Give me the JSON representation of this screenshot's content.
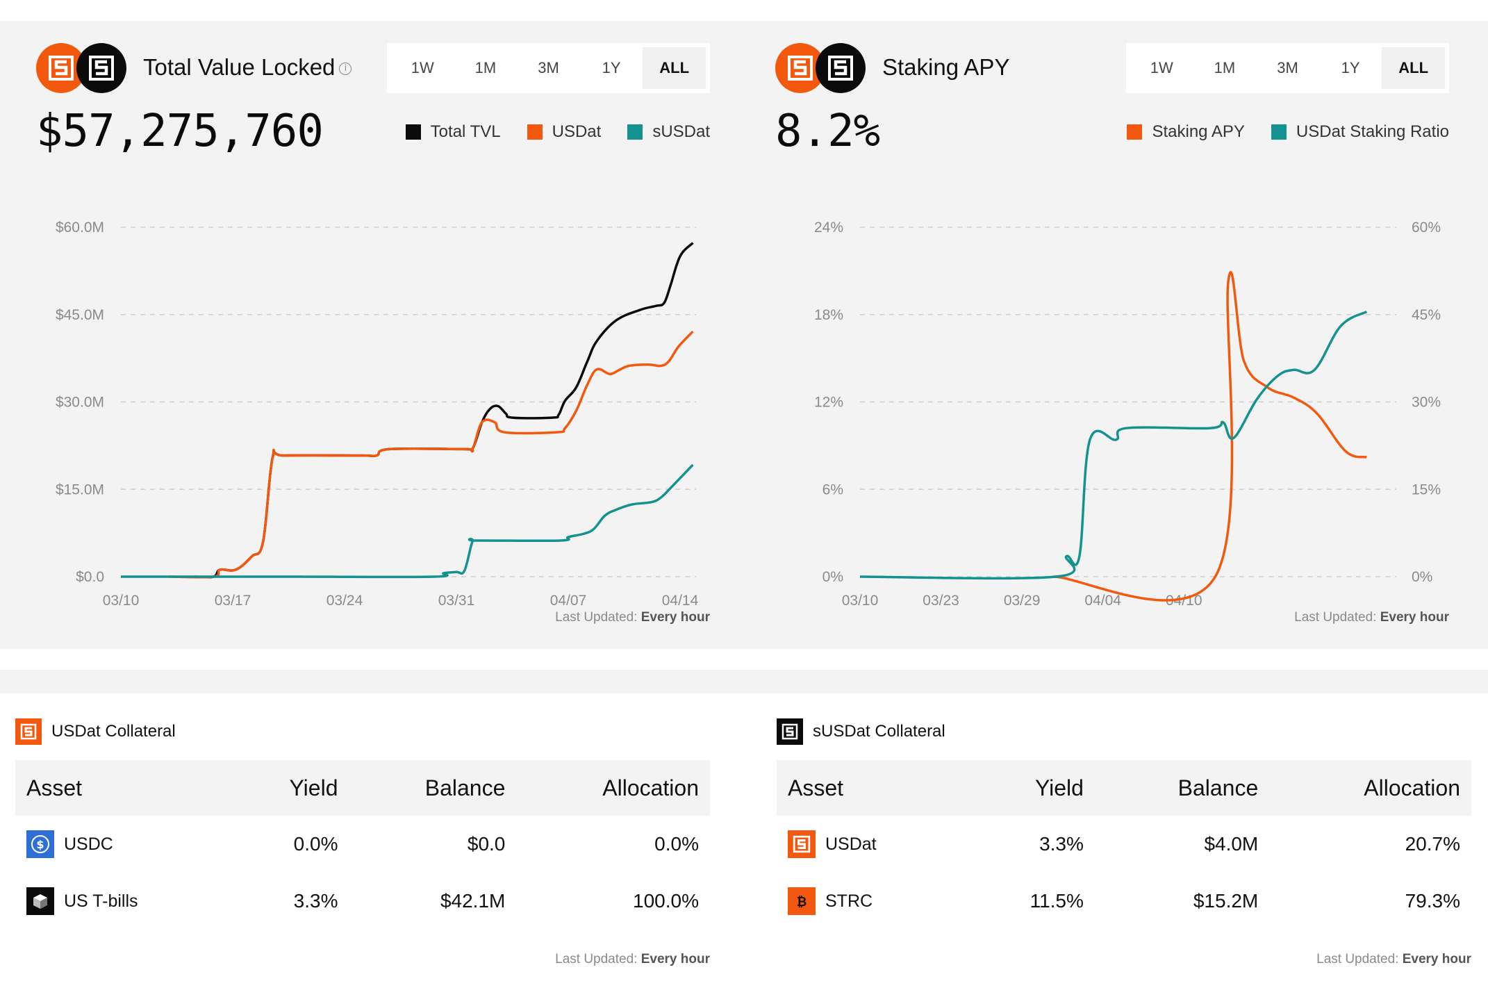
{
  "tvl_panel": {
    "title": "Total Value Locked",
    "info_icon": "info-icon",
    "big_value": "$57,275,760",
    "ranges": [
      "1W",
      "1M",
      "3M",
      "1Y",
      "ALL"
    ],
    "active_range": "ALL",
    "updated_label": "Last Updated:",
    "updated_value": "Every hour"
  },
  "apy_panel": {
    "title": "Staking APY",
    "big_value": "8.2%",
    "ranges": [
      "1W",
      "1M",
      "3M",
      "1Y",
      "ALL"
    ],
    "active_range": "ALL",
    "updated_label": "Last Updated:",
    "updated_value": "Every hour"
  },
  "colors": {
    "orange": "#f2590f",
    "black": "#0b0b0b",
    "teal": "#14928f",
    "panel_bg": "#f3f3f3"
  },
  "chart_data": [
    {
      "type": "line",
      "title": "Total Value Locked",
      "x_ticks": [
        "03/10",
        "03/17",
        "03/24",
        "03/31",
        "04/07",
        "04/14"
      ],
      "y_ticks": [
        "$60.0M",
        "$45.0M",
        "$30.0M",
        "$15.0M",
        "$0.0"
      ],
      "ylim": [
        0,
        60
      ],
      "x_range_days": [
        0,
        36
      ],
      "series": [
        {
          "name": "Total TVL",
          "color": "#0b0b0b",
          "points": [
            [
              4.6,
              0
            ],
            [
              5.8,
              0
            ],
            [
              6.2,
              1.2
            ],
            [
              7.2,
              1.2
            ],
            [
              8.2,
              3.5
            ],
            [
              8.9,
              6
            ],
            [
              9.5,
              20.5
            ],
            [
              10.2,
              20.8
            ],
            [
              15,
              20.8
            ],
            [
              16,
              20.8
            ],
            [
              16.8,
              21.9
            ],
            [
              21.5,
              21.9
            ],
            [
              22,
              21.9
            ],
            [
              22.6,
              26.5
            ],
            [
              23.1,
              28.8
            ],
            [
              23.6,
              29.3
            ],
            [
              24.1,
              28
            ],
            [
              24.5,
              27.3
            ],
            [
              27,
              27.3
            ],
            [
              27.4,
              27.8
            ],
            [
              27.8,
              30.2
            ],
            [
              28.5,
              32.5
            ],
            [
              29.2,
              37
            ],
            [
              29.8,
              40.5
            ],
            [
              31,
              44
            ],
            [
              32.5,
              45.8
            ],
            [
              33.5,
              46.5
            ],
            [
              34,
              47
            ],
            [
              34.4,
              50
            ],
            [
              35,
              55
            ],
            [
              35.8,
              57.3
            ]
          ]
        },
        {
          "name": "USDat",
          "color": "#f2590f",
          "points": [
            [
              3,
              0
            ],
            [
              5.8,
              0
            ],
            [
              6.2,
              1.2
            ],
            [
              7.2,
              1.2
            ],
            [
              8.2,
              3.5
            ],
            [
              8.9,
              6
            ],
            [
              9.5,
              20.5
            ],
            [
              10.2,
              20.8
            ],
            [
              15,
              20.8
            ],
            [
              16,
              20.8
            ],
            [
              16.8,
              21.9
            ],
            [
              21.5,
              21.9
            ],
            [
              22,
              21.9
            ],
            [
              22.6,
              26.5
            ],
            [
              23.4,
              26.5
            ],
            [
              24,
              24.8
            ],
            [
              27.3,
              24.8
            ],
            [
              27.8,
              25.5
            ],
            [
              28.5,
              28.5
            ],
            [
              29.2,
              33
            ],
            [
              29.8,
              35.6
            ],
            [
              30.6,
              34.8
            ],
            [
              31.2,
              35.5
            ],
            [
              31.8,
              36.2
            ],
            [
              33,
              36.4
            ],
            [
              33.8,
              36.2
            ],
            [
              34.3,
              37
            ],
            [
              34.9,
              39.5
            ],
            [
              35.8,
              42.1
            ]
          ]
        },
        {
          "name": "sUSDat",
          "color": "#14928f",
          "points": [
            [
              0,
              0
            ],
            [
              3,
              0
            ],
            [
              3.5,
              0
            ],
            [
              11,
              0
            ],
            [
              11.2,
              0
            ],
            [
              19.6,
              0
            ],
            [
              20.2,
              0.6
            ],
            [
              21,
              0.8
            ],
            [
              21.5,
              1
            ],
            [
              22,
              6
            ],
            [
              22.3,
              6.2
            ],
            [
              27.5,
              6.2
            ],
            [
              28,
              6.8
            ],
            [
              29,
              7.4
            ],
            [
              29.6,
              8.2
            ],
            [
              30.3,
              10.5
            ],
            [
              31,
              11.5
            ],
            [
              32,
              12.4
            ],
            [
              33.2,
              12.8
            ],
            [
              33.8,
              13.6
            ],
            [
              34.5,
              15.5
            ],
            [
              35.8,
              19.2
            ]
          ]
        }
      ]
    },
    {
      "type": "line",
      "title": "Staking APY",
      "x_ticks": [
        "03/10",
        "03/23",
        "03/29",
        "04/04",
        "04/10"
      ],
      "y_left_ticks": [
        "24%",
        "18%",
        "12%",
        "6%",
        "0%"
      ],
      "y_right_ticks": [
        "60%",
        "45%",
        "30%",
        "15%",
        "0%"
      ],
      "ylim_left": [
        0,
        24
      ],
      "ylim_right": [
        0,
        60
      ],
      "series": [
        {
          "name": "Staking APY",
          "color": "#f2590f",
          "axis": "left",
          "points": [
            [
              0.37,
              0
            ],
            [
              0.68,
              0
            ],
            [
              0.705,
              20.3
            ],
            [
              0.735,
              14.8
            ],
            [
              0.78,
              13
            ],
            [
              0.83,
              12.3
            ],
            [
              0.875,
              11.2
            ],
            [
              0.93,
              8.6
            ],
            [
              0.97,
              8.2
            ]
          ]
        },
        {
          "name": "USDat Staking Ratio",
          "color": "#14928f",
          "axis": "right",
          "points": [
            [
              0,
              0
            ],
            [
              0.375,
              0
            ],
            [
              0.395,
              3.5
            ],
            [
              0.42,
              3.5
            ],
            [
              0.44,
              23.5
            ],
            [
              0.49,
              23.5
            ],
            [
              0.51,
              25.5
            ],
            [
              0.67,
              25.5
            ],
            [
              0.695,
              26.5
            ],
            [
              0.715,
              23.8
            ],
            [
              0.76,
              30.5
            ],
            [
              0.8,
              34.5
            ],
            [
              0.83,
              35.5
            ],
            [
              0.87,
              35.5
            ],
            [
              0.92,
              43
            ],
            [
              0.97,
              45.5
            ]
          ]
        }
      ]
    }
  ],
  "usdat_collateral": {
    "title": "USDat Collateral",
    "headers": [
      "Asset",
      "Yield",
      "Balance",
      "Allocation"
    ],
    "rows": [
      {
        "asset": "USDC",
        "icon": "usdc-icon",
        "yield": "0.0%",
        "balance": "$0.0",
        "allocation": "0.0%"
      },
      {
        "asset": "US T-bills",
        "icon": "tbills-icon",
        "yield": "3.3%",
        "balance": "$42.1M",
        "allocation": "100.0%"
      }
    ],
    "updated_label": "Last Updated:",
    "updated_value": "Every hour"
  },
  "susdat_collateral": {
    "title": "sUSDat Collateral",
    "headers": [
      "Asset",
      "Yield",
      "Balance",
      "Allocation"
    ],
    "rows": [
      {
        "asset": "USDat",
        "icon": "usdat-icon",
        "yield": "3.3%",
        "balance": "$4.0M",
        "allocation": "20.7%"
      },
      {
        "asset": "STRC",
        "icon": "bitcoin-icon",
        "yield": "11.5%",
        "balance": "$15.2M",
        "allocation": "79.3%"
      }
    ],
    "updated_label": "Last Updated:",
    "updated_value": "Every hour"
  }
}
